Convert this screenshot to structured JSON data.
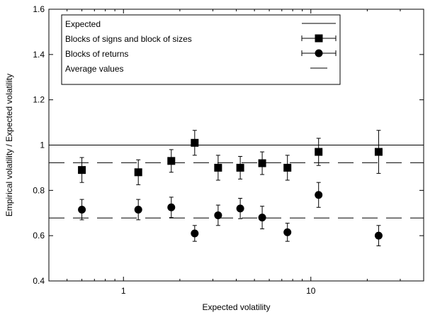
{
  "chart_data": {
    "type": "scatter",
    "title": "",
    "xlabel": "Expected volatility",
    "ylabel": "Empirical volatility / Expected volatility",
    "xscale": "log",
    "xlim": [
      0.4,
      40
    ],
    "ylim": [
      0.4,
      1.6
    ],
    "xticks": [
      1,
      10
    ],
    "xtick_labels": [
      "1",
      "10"
    ],
    "yticks": [
      0.4,
      0.6,
      0.8,
      1.0,
      1.2,
      1.4,
      1.6
    ],
    "ytick_labels": [
      "0.4",
      "0.6",
      "0.8",
      "1",
      "1.2",
      "1.4",
      "1.6"
    ],
    "grid": false,
    "legend_position": "top-left",
    "series": [
      {
        "name": "Expected",
        "kind": "line",
        "y": 1.0,
        "color": "#000000"
      },
      {
        "name": "Blocks of signs and block of sizes",
        "kind": "points",
        "marker": "square",
        "color": "#000000",
        "x": [
          0.6,
          1.2,
          1.8,
          2.4,
          3.2,
          4.2,
          5.5,
          7.5,
          11.0,
          23.0
        ],
        "y": [
          0.89,
          0.88,
          0.93,
          1.01,
          0.9,
          0.9,
          0.92,
          0.9,
          0.97,
          0.97
        ],
        "yerr": [
          0.055,
          0.055,
          0.05,
          0.055,
          0.055,
          0.05,
          0.05,
          0.055,
          0.06,
          0.095
        ]
      },
      {
        "name": "Blocks of returns",
        "kind": "points",
        "marker": "circle",
        "color": "#000000",
        "x": [
          0.6,
          1.2,
          1.8,
          2.4,
          3.2,
          4.2,
          5.5,
          7.5,
          11.0,
          23.0
        ],
        "y": [
          0.715,
          0.715,
          0.725,
          0.61,
          0.69,
          0.72,
          0.68,
          0.615,
          0.78,
          0.6
        ],
        "yerr": [
          0.045,
          0.045,
          0.045,
          0.035,
          0.045,
          0.045,
          0.05,
          0.04,
          0.055,
          0.045
        ]
      },
      {
        "name": "Average values",
        "kind": "dashed-line",
        "color": "#000000",
        "levels": [
          0.922,
          0.678
        ]
      }
    ]
  }
}
